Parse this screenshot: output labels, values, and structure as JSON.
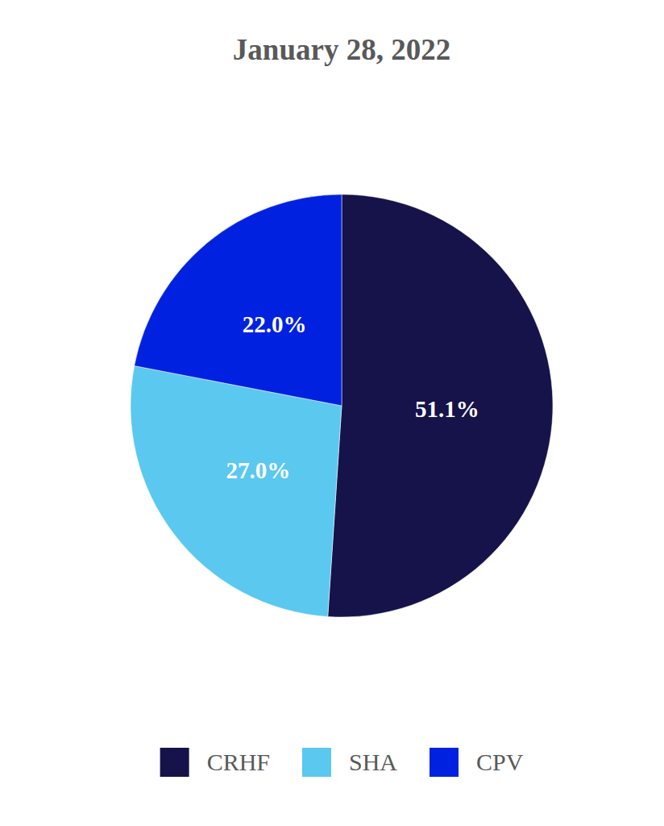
{
  "chart_data": {
    "type": "pie",
    "title": "January 28, 2022",
    "categories": [
      "CRHF",
      "SHA",
      "CPV"
    ],
    "values": [
      51.1,
      27.0,
      22.0
    ],
    "value_labels": [
      "51.1%",
      "27.0%",
      "22.0%"
    ],
    "colors": [
      "#16124a",
      "#5bc8ef",
      "#0022e0"
    ],
    "data_labels": true,
    "legend": "bottom"
  }
}
